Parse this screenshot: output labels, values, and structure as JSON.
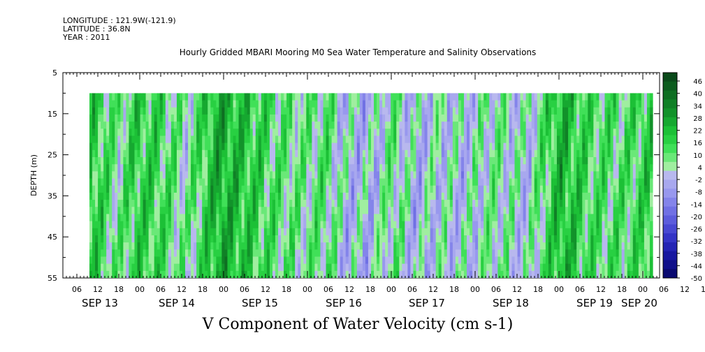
{
  "header": {
    "longitude": "LONGITUDE : 121.9W(-121.9)",
    "latitude": "LATITUDE : 36.8N",
    "year": "YEAR : 2011"
  },
  "chart_data": {
    "type": "heatmap",
    "title": "Hourly Gridded MBARI Mooring M0 Sea Water Temperature and Salinity Observations",
    "xlabel": "V Component of Water Velocity (cm s-1)",
    "ylabel": "DEPTH (m)",
    "x_axis": {
      "hour_ticks": [
        "06",
        "12",
        "18",
        "00",
        "06",
        "12",
        "18",
        "00",
        "06",
        "12",
        "18",
        "00",
        "06",
        "12",
        "18",
        "00",
        "06",
        "12",
        "18",
        "00",
        "06",
        "12",
        "18",
        "00",
        "06",
        "12",
        "18",
        "00",
        "06",
        "12",
        "18",
        "00"
      ],
      "day_labels": [
        "SEP 13",
        "SEP 14",
        "SEP 15",
        "SEP 16",
        "SEP 17",
        "SEP 18",
        "SEP 19",
        "SEP 20"
      ]
    },
    "y_axis": {
      "ticks": [
        "5",
        "15",
        "25",
        "35",
        "45",
        "55"
      ],
      "ylim": [
        55,
        5
      ],
      "data_range": [
        10,
        55
      ]
    },
    "colorbar": {
      "labels": [
        "46",
        "40",
        "34",
        "28",
        "22",
        "16",
        "10",
        "4",
        "-2",
        "-8",
        "-14",
        "-20",
        "-26",
        "-32",
        "-38",
        "-44",
        "-50"
      ],
      "colors": [
        "#0a4a1a",
        "#0c5c1e",
        "#0e6e22",
        "#108026",
        "#12922a",
        "#16a830",
        "#1cc036",
        "#28d042",
        "#40e058",
        "#6ae878",
        "#a0eea0",
        "#b8b8ee",
        "#a8a8ee",
        "#9898ee",
        "#8484ea",
        "#7070e4",
        "#5c5cdc",
        "#4848d2",
        "#3434c6",
        "#2424b4",
        "#1818a0",
        "#10108a",
        "#0a0a70"
      ]
    },
    "value_fields": {
      "columns": [
        {
          "pos": 0.0,
          "v": 16
        },
        {
          "pos": 0.05,
          "v": 4
        },
        {
          "pos": 0.08,
          "v": 14
        },
        {
          "pos": 0.12,
          "v": 12
        },
        {
          "pos": 0.17,
          "v": 2
        },
        {
          "pos": 0.23,
          "v": 22
        },
        {
          "pos": 0.29,
          "v": 14
        },
        {
          "pos": 0.33,
          "v": 8
        },
        {
          "pos": 0.38,
          "v": 4
        },
        {
          "pos": 0.42,
          "v": 8
        },
        {
          "pos": 0.45,
          "v": -2
        },
        {
          "pos": 0.5,
          "v": -4
        },
        {
          "pos": 0.54,
          "v": 6
        },
        {
          "pos": 0.58,
          "v": -4
        },
        {
          "pos": 0.62,
          "v": 0
        },
        {
          "pos": 0.67,
          "v": -2
        },
        {
          "pos": 0.72,
          "v": 4
        },
        {
          "pos": 0.78,
          "v": -2
        },
        {
          "pos": 0.84,
          "v": 20
        },
        {
          "pos": 0.89,
          "v": 10
        },
        {
          "pos": 0.95,
          "v": 8
        },
        {
          "pos": 1.0,
          "v": 14
        }
      ]
    }
  }
}
